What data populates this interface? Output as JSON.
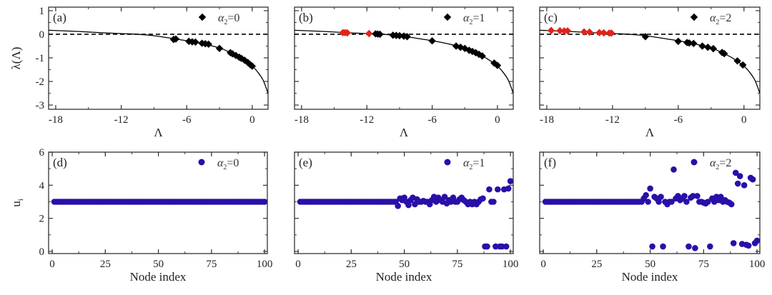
{
  "chart_data": [
    {
      "panel": "(a)",
      "type": "scatter",
      "xlabel": "Λ",
      "ylabel": "λ(Λ)",
      "xlim": [
        -18.65,
        1.45
      ],
      "ylim": [
        -3.18,
        1.15
      ],
      "xticks": [
        -18,
        -12,
        -6,
        0
      ],
      "yticks": [
        1,
        0,
        -1,
        -2,
        -3
      ],
      "legend": {
        "symbol": "diamond",
        "param": "α",
        "sub": "2",
        "value": "=0",
        "placement": "top-right"
      },
      "curve": [
        [
          -18.65,
          0.17
        ],
        [
          -16,
          0.12
        ],
        [
          -14,
          0.07
        ],
        [
          -12,
          0.03
        ],
        [
          -10.5,
          0.0
        ],
        [
          -9,
          -0.06
        ],
        [
          -7,
          -0.2
        ],
        [
          -5,
          -0.36
        ],
        [
          -3,
          -0.58
        ],
        [
          -2,
          -0.78
        ],
        [
          -1,
          -1.02
        ],
        [
          0,
          -1.35
        ],
        [
          0.5,
          -1.6
        ],
        [
          1,
          -1.95
        ],
        [
          1.45,
          -2.5
        ]
      ],
      "reference_line": 0,
      "points_black": [
        [
          -7.2,
          -0.22
        ],
        [
          -7.0,
          -0.2
        ],
        [
          -5.8,
          -0.3
        ],
        [
          -5.5,
          -0.32
        ],
        [
          -5.2,
          -0.33
        ],
        [
          -4.6,
          -0.38
        ],
        [
          -4.3,
          -0.4
        ],
        [
          -4.0,
          -0.42
        ],
        [
          -3.0,
          -0.6
        ],
        [
          -2.0,
          -0.78
        ],
        [
          -1.8,
          -0.83
        ],
        [
          -1.5,
          -0.9
        ],
        [
          -1.2,
          -0.97
        ],
        [
          -1.0,
          -1.02
        ],
        [
          -0.7,
          -1.1
        ],
        [
          -0.4,
          -1.2
        ],
        [
          -0.2,
          -1.28
        ],
        [
          0.0,
          -1.35
        ]
      ],
      "points_red": []
    },
    {
      "panel": "(b)",
      "type": "scatter",
      "xlabel": "Λ",
      "ylabel": "",
      "xlim": [
        -18.65,
        1.45
      ],
      "ylim": [
        -3.18,
        1.15
      ],
      "xticks": [
        -18,
        -12,
        -6,
        0
      ],
      "yticks": [
        1,
        0,
        -1,
        -2,
        -3
      ],
      "legend": {
        "symbol": "diamond",
        "param": "α",
        "sub": "2",
        "value": "=1",
        "placement": "top-right"
      },
      "curve": [
        [
          -18.65,
          0.17
        ],
        [
          -16,
          0.12
        ],
        [
          -14,
          0.07
        ],
        [
          -12,
          0.03
        ],
        [
          -10.5,
          0.0
        ],
        [
          -9,
          -0.06
        ],
        [
          -7,
          -0.2
        ],
        [
          -5,
          -0.36
        ],
        [
          -3,
          -0.58
        ],
        [
          -2,
          -0.78
        ],
        [
          -1,
          -1.02
        ],
        [
          0,
          -1.35
        ],
        [
          0.5,
          -1.6
        ],
        [
          1,
          -1.95
        ],
        [
          1.45,
          -2.5
        ]
      ],
      "reference_line": 0,
      "points_black": [
        [
          -11.2,
          0.02
        ],
        [
          -11.0,
          0.01
        ],
        [
          -10.8,
          0.0
        ],
        [
          -9.6,
          -0.04
        ],
        [
          -9.3,
          -0.05
        ],
        [
          -9.0,
          -0.06
        ],
        [
          -8.6,
          -0.08
        ],
        [
          -8.3,
          -0.1
        ],
        [
          -6.0,
          -0.28
        ],
        [
          -3.8,
          -0.5
        ],
        [
          -3.4,
          -0.55
        ],
        [
          -3.0,
          -0.6
        ],
        [
          -2.6,
          -0.68
        ],
        [
          -2.3,
          -0.73
        ],
        [
          -2.0,
          -0.78
        ],
        [
          -1.7,
          -0.85
        ],
        [
          -1.4,
          -0.92
        ],
        [
          -0.3,
          -1.22
        ],
        [
          0.0,
          -1.32
        ]
      ],
      "points_red": [
        [
          -14.2,
          0.07
        ],
        [
          -14.0,
          0.07
        ],
        [
          -13.8,
          0.06
        ],
        [
          -11.8,
          0.03
        ]
      ]
    },
    {
      "panel": "(c)",
      "type": "scatter",
      "xlabel": "Λ",
      "ylabel": "",
      "xlim": [
        -18.65,
        1.45
      ],
      "ylim": [
        -3.18,
        1.15
      ],
      "xticks": [
        -18,
        -12,
        -6,
        0
      ],
      "yticks": [
        1,
        0,
        -1,
        -2,
        -3
      ],
      "legend": {
        "symbol": "diamond",
        "param": "α",
        "sub": "2",
        "value": "=2",
        "placement": "top-right"
      },
      "curve": [
        [
          -18.65,
          0.17
        ],
        [
          -16,
          0.12
        ],
        [
          -14,
          0.07
        ],
        [
          -12,
          0.03
        ],
        [
          -10.5,
          0.0
        ],
        [
          -9,
          -0.06
        ],
        [
          -7,
          -0.2
        ],
        [
          -5,
          -0.36
        ],
        [
          -3,
          -0.58
        ],
        [
          -2,
          -0.78
        ],
        [
          -1,
          -1.02
        ],
        [
          0,
          -1.35
        ],
        [
          0.5,
          -1.6
        ],
        [
          1,
          -1.95
        ],
        [
          1.45,
          -2.5
        ]
      ],
      "reference_line": 0,
      "points_black": [
        [
          -9.0,
          -0.1
        ],
        [
          -6.0,
          -0.3
        ],
        [
          -5.2,
          -0.35
        ],
        [
          -5.0,
          -0.37
        ],
        [
          -4.6,
          -0.39
        ],
        [
          -3.8,
          -0.5
        ],
        [
          -3.3,
          -0.55
        ],
        [
          -2.8,
          -0.61
        ],
        [
          -2.0,
          -0.77
        ],
        [
          -1.8,
          -0.82
        ],
        [
          -0.6,
          -1.13
        ],
        [
          -0.1,
          -1.3
        ]
      ],
      "points_red": [
        [
          -17.6,
          0.16
        ],
        [
          -16.8,
          0.15
        ],
        [
          -16.4,
          0.14
        ],
        [
          -16.1,
          0.14
        ],
        [
          -14.6,
          0.1
        ],
        [
          -14.1,
          0.09
        ],
        [
          -13.2,
          0.07
        ],
        [
          -12.8,
          0.06
        ],
        [
          -12.3,
          0.05
        ],
        [
          -12.1,
          0.05
        ]
      ]
    },
    {
      "panel": "(d)",
      "type": "scatter",
      "xlabel": "Node index",
      "ylabel": "u_i",
      "xlim": [
        -1.7,
        101.3
      ],
      "ylim": [
        -0.13,
        6.0
      ],
      "xticks": [
        0,
        25,
        50,
        75,
        100
      ],
      "yticks": [
        0,
        2,
        4,
        6
      ],
      "legend": {
        "symbol": "circle",
        "param": "α",
        "sub": "2",
        "value": "=0",
        "placement": "top-right"
      },
      "constant_run": {
        "from": 1,
        "to": 100,
        "value": 3.0
      },
      "points": []
    },
    {
      "panel": "(e)",
      "type": "scatter",
      "xlabel": "Node index",
      "ylabel": "",
      "xlim": [
        -1.7,
        101.3
      ],
      "ylim": [
        -0.13,
        6.0
      ],
      "xticks": [
        0,
        25,
        50,
        75,
        100
      ],
      "yticks": [
        0,
        2,
        4,
        6
      ],
      "legend": {
        "symbol": "circle",
        "param": "α",
        "sub": "2",
        "value": "=1",
        "placement": "top-right"
      },
      "constant_run": {
        "from": 1,
        "to": 46,
        "value": 3.0
      },
      "points": [
        [
          47,
          2.75
        ],
        [
          48,
          3.2
        ],
        [
          49,
          3.1
        ],
        [
          50,
          3.25
        ],
        [
          51,
          3.0
        ],
        [
          52,
          2.8
        ],
        [
          53,
          3.1
        ],
        [
          54,
          3.25
        ],
        [
          55,
          2.85
        ],
        [
          56,
          3.15
        ],
        [
          57,
          3.0
        ],
        [
          58,
          3.0
        ],
        [
          59,
          3.05
        ],
        [
          60,
          3.0
        ],
        [
          61,
          3.0
        ],
        [
          62,
          2.85
        ],
        [
          63,
          3.1
        ],
        [
          64,
          3.3
        ],
        [
          65,
          3.0
        ],
        [
          66,
          3.25
        ],
        [
          67,
          3.1
        ],
        [
          68,
          3.0
        ],
        [
          69,
          3.3
        ],
        [
          70,
          2.9
        ],
        [
          71,
          3.1
        ],
        [
          72,
          3.0
        ],
        [
          73,
          3.25
        ],
        [
          74,
          3.0
        ],
        [
          75,
          3.0
        ],
        [
          76,
          3.15
        ],
        [
          77,
          3.25
        ],
        [
          78,
          3.1
        ],
        [
          79,
          3.0
        ],
        [
          80,
          2.85
        ],
        [
          81,
          3.0
        ],
        [
          82,
          2.85
        ],
        [
          83,
          3.0
        ],
        [
          84,
          2.85
        ],
        [
          85,
          3.0
        ],
        [
          86,
          3.15
        ],
        [
          87,
          3.2
        ],
        [
          88,
          0.3
        ],
        [
          89,
          0.3
        ],
        [
          90,
          3.75
        ],
        [
          91,
          3.0
        ],
        [
          92,
          3.0
        ],
        [
          93,
          0.3
        ],
        [
          94,
          3.75
        ],
        [
          95,
          0.3
        ],
        [
          96,
          0.3
        ],
        [
          97,
          3.75
        ],
        [
          98,
          0.3
        ],
        [
          99,
          3.8
        ],
        [
          100,
          4.25
        ]
      ]
    },
    {
      "panel": "(f)",
      "type": "scatter",
      "xlabel": "Node index",
      "ylabel": "",
      "xlim": [
        -1.7,
        101.3
      ],
      "ylim": [
        -0.13,
        6.0
      ],
      "xticks": [
        0,
        25,
        50,
        75,
        100
      ],
      "yticks": [
        0,
        2,
        4,
        6
      ],
      "legend": {
        "symbol": "circle",
        "param": "α",
        "sub": "2",
        "value": "=2",
        "placement": "top-right"
      },
      "constant_run": {
        "from": 1,
        "to": 46,
        "value": 3.0
      },
      "points": [
        [
          47,
          3.2
        ],
        [
          48,
          3.4
        ],
        [
          49,
          3.0
        ],
        [
          50,
          3.8
        ],
        [
          51,
          0.3
        ],
        [
          52,
          3.3
        ],
        [
          53,
          3.2
        ],
        [
          54,
          3.0
        ],
        [
          55,
          3.3
        ],
        [
          56,
          0.3
        ],
        [
          57,
          3.0
        ],
        [
          58,
          2.85
        ],
        [
          59,
          3.0
        ],
        [
          60,
          3.0
        ],
        [
          61,
          4.95
        ],
        [
          62,
          3.2
        ],
        [
          63,
          3.35
        ],
        [
          64,
          3.1
        ],
        [
          65,
          3.2
        ],
        [
          66,
          3.35
        ],
        [
          67,
          3.0
        ],
        [
          68,
          0.3
        ],
        [
          69,
          3.25
        ],
        [
          70,
          3.35
        ],
        [
          71,
          0.2
        ],
        [
          72,
          3.35
        ],
        [
          73,
          3.0
        ],
        [
          74,
          3.0
        ],
        [
          75,
          2.95
        ],
        [
          76,
          2.9
        ],
        [
          77,
          3.0
        ],
        [
          78,
          0.3
        ],
        [
          79,
          3.2
        ],
        [
          80,
          3.0
        ],
        [
          81,
          3.3
        ],
        [
          82,
          3.1
        ],
        [
          83,
          3.3
        ],
        [
          84,
          3.0
        ],
        [
          85,
          3.1
        ],
        [
          86,
          3.0
        ],
        [
          87,
          2.95
        ],
        [
          88,
          2.85
        ],
        [
          89,
          0.5
        ],
        [
          90,
          4.75
        ],
        [
          91,
          4.1
        ],
        [
          92,
          4.55
        ],
        [
          93,
          0.45
        ],
        [
          94,
          4.0
        ],
        [
          95,
          0.4
        ],
        [
          96,
          0.35
        ],
        [
          97,
          4.45
        ],
        [
          98,
          4.35
        ],
        [
          99,
          0.5
        ],
        [
          100,
          0.65
        ]
      ]
    }
  ]
}
